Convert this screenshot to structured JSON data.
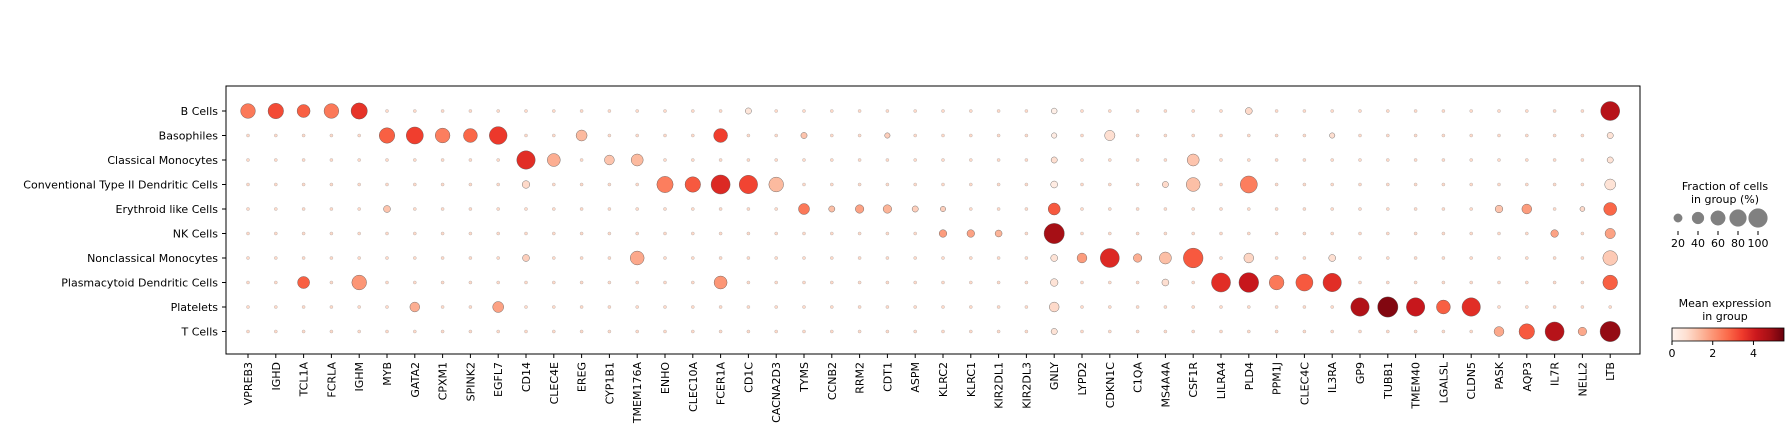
{
  "chart_data": {
    "type": "dotplot",
    "groups": [
      "B Cells",
      "Basophiles",
      "Classical Monocytes",
      "Conventional Type II Dendritic Cells",
      "Erythroid like Cells",
      "NK Cells",
      "Nonclassical Monocytes",
      "Plasmacytoid Dendritic Cells",
      "Platelets",
      "T Cells"
    ],
    "genes": [
      "VPREB3",
      "IGHD",
      "TCL1A",
      "FCRLA",
      "IGHM",
      "MYB",
      "GATA2",
      "CPXM1",
      "SPINK2",
      "EGFL7",
      "CD14",
      "CLEC4E",
      "EREG",
      "CYP1B1",
      "TMEM176A",
      "ENHO",
      "CLEC10A",
      "FCER1A",
      "CD1C",
      "CACNA2D3",
      "TYMS",
      "CCNB2",
      "RRM2",
      "CDT1",
      "ASPM",
      "KLRC2",
      "KLRC1",
      "KIR2DL1",
      "KIR2DL3",
      "GNLY",
      "LYPD2",
      "CDKN1C",
      "C1QA",
      "MS4A4A",
      "CSF1R",
      "LILRA4",
      "PLD4",
      "PPM1J",
      "CLEC4C",
      "IL3RA",
      "GP9",
      "TUBB1",
      "TMEM40",
      "LGALSL",
      "CLDN5",
      "PASK",
      "AQP3",
      "IL7R",
      "NELL2",
      "LTB"
    ],
    "points": [
      [
        "B Cells",
        "VPREB3",
        45,
        2.5
      ],
      [
        "B Cells",
        "IGHD",
        50,
        3.2
      ],
      [
        "B Cells",
        "TCL1A",
        35,
        2.9
      ],
      [
        "B Cells",
        "FCRLA",
        45,
        2.5
      ],
      [
        "B Cells",
        "IGHM",
        55,
        3.6
      ],
      [
        "B Cells",
        "CD1C",
        8,
        0.5
      ],
      [
        "B Cells",
        "GNLY",
        7,
        0.2
      ],
      [
        "B Cells",
        "PLD4",
        10,
        0.8
      ],
      [
        "B Cells",
        "LTB",
        75,
        4.5
      ],
      [
        "Basophiles",
        "MYB",
        50,
        2.9
      ],
      [
        "Basophiles",
        "GATA2",
        60,
        3.4
      ],
      [
        "Basophiles",
        "CPXM1",
        45,
        2.4
      ],
      [
        "Basophiles",
        "SPINK2",
        40,
        2.8
      ],
      [
        "Basophiles",
        "EGFL7",
        65,
        3.5
      ],
      [
        "Basophiles",
        "EREG",
        25,
        1.4
      ],
      [
        "Basophiles",
        "FCER1A",
        40,
        3.4
      ],
      [
        "Basophiles",
        "TYMS",
        8,
        1.2
      ],
      [
        "Basophiles",
        "CDT1",
        6,
        1.0
      ],
      [
        "Basophiles",
        "GNLY",
        6,
        0.3
      ],
      [
        "Basophiles",
        "CDKN1C",
        22,
        0.7
      ],
      [
        "Basophiles",
        "IL3RA",
        6,
        0.7
      ],
      [
        "Basophiles",
        "LTB",
        8,
        0.6
      ],
      [
        "Classical Monocytes",
        "CD14",
        70,
        3.7
      ],
      [
        "Classical Monocytes",
        "CLEC4E",
        35,
        1.6
      ],
      [
        "Classical Monocytes",
        "CYP1B1",
        20,
        1.2
      ],
      [
        "Classical Monocytes",
        "TMEM176A",
        30,
        1.4
      ],
      [
        "Classical Monocytes",
        "GNLY",
        8,
        0.7
      ],
      [
        "Classical Monocytes",
        "CSF1R",
        30,
        1.2
      ],
      [
        "Classical Monocytes",
        "LTB",
        8,
        0.6
      ],
      [
        "Conventional Type II Dendritic Cells",
        "CD14",
        12,
        0.8
      ],
      [
        "Conventional Type II Dendritic Cells",
        "ENHO",
        55,
        2.4
      ],
      [
        "Conventional Type II Dendritic Cells",
        "CLEC10A",
        50,
        3.0
      ],
      [
        "Conventional Type II Dendritic Cells",
        "FCER1A",
        75,
        3.8
      ],
      [
        "Conventional Type II Dendritic Cells",
        "CD1C",
        70,
        3.3
      ],
      [
        "Conventional Type II Dendritic Cells",
        "CACNA2D3",
        45,
        1.4
      ],
      [
        "Conventional Type II Dendritic Cells",
        "GNLY",
        10,
        0.3
      ],
      [
        "Conventional Type II Dendritic Cells",
        "MS4A4A",
        8,
        0.8
      ],
      [
        "Conventional Type II Dendritic Cells",
        "CSF1R",
        40,
        1.3
      ],
      [
        "Conventional Type II Dendritic Cells",
        "PLD4",
        60,
        2.4
      ],
      [
        "Conventional Type II Dendritic Cells",
        "LTB",
        25,
        0.6
      ],
      [
        "Erythroid like Cells",
        "MYB",
        10,
        1.2
      ],
      [
        "Erythroid like Cells",
        "TYMS",
        25,
        2.5
      ],
      [
        "Erythroid like Cells",
        "CCNB2",
        8,
        1.3
      ],
      [
        "Erythroid like Cells",
        "RRM2",
        15,
        1.8
      ],
      [
        "Erythroid like Cells",
        "CDT1",
        15,
        1.5
      ],
      [
        "Erythroid like Cells",
        "ASPM",
        8,
        1.0
      ],
      [
        "Erythroid like Cells",
        "KLRC2",
        6,
        1.0
      ],
      [
        "Erythroid like Cells",
        "GNLY",
        30,
        3.0
      ],
      [
        "Erythroid like Cells",
        "PASK",
        12,
        1.2
      ],
      [
        "Erythroid like Cells",
        "AQP3",
        20,
        1.9
      ],
      [
        "Erythroid like Cells",
        "NELL2",
        5,
        0.8
      ],
      [
        "Erythroid like Cells",
        "LTB",
        35,
        2.8
      ],
      [
        "NK Cells",
        "KLRC2",
        12,
        1.9
      ],
      [
        "NK Cells",
        "KLRC1",
        12,
        1.8
      ],
      [
        "NK Cells",
        "KIR2DL1",
        10,
        1.5
      ],
      [
        "NK Cells",
        "GNLY",
        85,
        4.8
      ],
      [
        "NK Cells",
        "IL7R",
        12,
        1.8
      ],
      [
        "NK Cells",
        "LTB",
        22,
        1.8
      ],
      [
        "Nonclassical Monocytes",
        "CD14",
        10,
        1.0
      ],
      [
        "Nonclassical Monocytes",
        "TMEM176A",
        40,
        1.7
      ],
      [
        "Nonclassical Monocytes",
        "GNLY",
        10,
        0.6
      ],
      [
        "Nonclassical Monocytes",
        "LYPD2",
        20,
        1.9
      ],
      [
        "Nonclassical Monocytes",
        "CDKN1C",
        75,
        3.8
      ],
      [
        "Nonclassical Monocytes",
        "C1QA",
        15,
        1.6
      ],
      [
        "Nonclassical Monocytes",
        "MS4A4A",
        30,
        1.3
      ],
      [
        "Nonclassical Monocytes",
        "CSF1R",
        80,
        3.0
      ],
      [
        "Nonclassical Monocytes",
        "PLD4",
        20,
        0.9
      ],
      [
        "Nonclassical Monocytes",
        "IL3RA",
        10,
        0.7
      ],
      [
        "Nonclassical Monocytes",
        "LTB",
        45,
        1.1
      ],
      [
        "Plasmacytoid Dendritic Cells",
        "TCL1A",
        30,
        2.9
      ],
      [
        "Plasmacytoid Dendritic Cells",
        "IGHM",
        45,
        2.0
      ],
      [
        "Plasmacytoid Dendritic Cells",
        "FCER1A",
        35,
        2.0
      ],
      [
        "Plasmacytoid Dendritic Cells",
        "GNLY",
        12,
        0.6
      ],
      [
        "Plasmacytoid Dendritic Cells",
        "MS4A4A",
        10,
        0.7
      ],
      [
        "Plasmacytoid Dendritic Cells",
        "LILRA4",
        75,
        3.7
      ],
      [
        "Plasmacytoid Dendritic Cells",
        "PLD4",
        80,
        4.2
      ],
      [
        "Plasmacytoid Dendritic Cells",
        "PPM1J",
        45,
        2.5
      ],
      [
        "Plasmacytoid Dendritic Cells",
        "CLEC4C",
        60,
        3.0
      ],
      [
        "Plasmacytoid Dendritic Cells",
        "IL3RA",
        70,
        3.7
      ],
      [
        "Plasmacytoid Dendritic Cells",
        "LTB",
        45,
        2.9
      ],
      [
        "Platelets",
        "GATA2",
        20,
        1.6
      ],
      [
        "Platelets",
        "EGFL7",
        25,
        1.8
      ],
      [
        "Platelets",
        "GNLY",
        20,
        0.8
      ],
      [
        "Platelets",
        "GP9",
        70,
        4.6
      ],
      [
        "Platelets",
        "TUBB1",
        85,
        5.2
      ],
      [
        "Platelets",
        "TMEM40",
        70,
        4.2
      ],
      [
        "Platelets",
        "LGALSL",
        40,
        2.9
      ],
      [
        "Platelets",
        "CLDN5",
        70,
        3.7
      ],
      [
        "T Cells",
        "GNLY",
        8,
        0.6
      ],
      [
        "T Cells",
        "PASK",
        20,
        1.7
      ],
      [
        "T Cells",
        "AQP3",
        50,
        3.0
      ],
      [
        "T Cells",
        "IL7R",
        75,
        4.5
      ],
      [
        "T Cells",
        "NELL2",
        15,
        1.7
      ],
      [
        "T Cells",
        "LTB",
        85,
        5.0
      ]
    ],
    "baseline_fraction": 2,
    "size_legend": {
      "title": "Fraction of cells\nin group (%)",
      "ticks": [
        20,
        40,
        60,
        80,
        100
      ]
    },
    "color_legend": {
      "title": "Mean expression\nin group",
      "ticks": [
        0,
        2,
        4
      ],
      "range": [
        0,
        5.5
      ],
      "colormap": "Reds"
    }
  }
}
